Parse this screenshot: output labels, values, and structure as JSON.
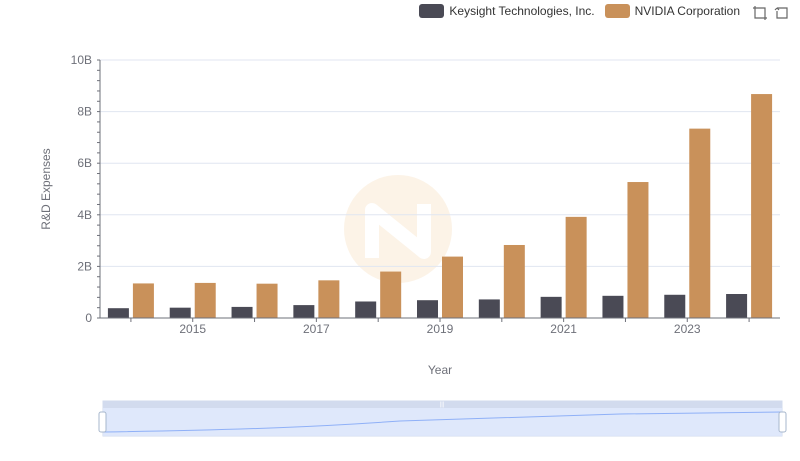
{
  "chart_data": {
    "type": "bar",
    "title": "",
    "xlabel": "Year",
    "ylabel": "R&D Expenses",
    "ylim": [
      0,
      10000000000
    ],
    "yticks": [
      0,
      2000000000,
      4000000000,
      6000000000,
      8000000000,
      10000000000
    ],
    "ytick_labels": [
      "0",
      "2B",
      "4B",
      "6B",
      "8B",
      "10B"
    ],
    "categories": [
      "2014",
      "2015",
      "2016",
      "2017",
      "2018",
      "2019",
      "2020",
      "2021",
      "2022",
      "2023",
      "2024"
    ],
    "xtick_labels": [
      "2015",
      "2017",
      "2019",
      "2021",
      "2023"
    ],
    "series": [
      {
        "name": "Keysight Technologies, Inc.",
        "color": "#4a4a55",
        "values": [
          380000000,
          400000000,
          430000000,
          500000000,
          640000000,
          690000000,
          720000000,
          820000000,
          860000000,
          900000000,
          930000000
        ]
      },
      {
        "name": "NVIDIA Corporation",
        "color": "#c9915a",
        "values": [
          1340000000,
          1360000000,
          1330000000,
          1460000000,
          1800000000,
          2380000000,
          2830000000,
          3920000000,
          5270000000,
          7340000000,
          8680000000
        ]
      }
    ],
    "legend_position": "top-right",
    "grid": true
  },
  "legend": [
    {
      "label": "Keysight Technologies, Inc.",
      "color": "#4a4a55"
    },
    {
      "label": "NVIDIA Corporation",
      "color": "#c9915a"
    }
  ],
  "toolbox": {
    "zoom_icon": "zoom-icon",
    "restore_icon": "restore-icon"
  },
  "datazoom": {
    "range_start": 0,
    "range_end": 100
  }
}
